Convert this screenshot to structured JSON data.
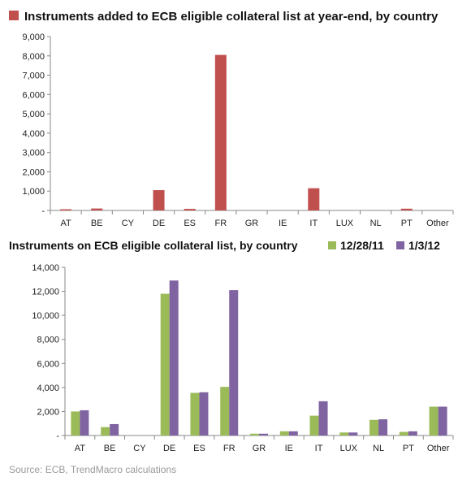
{
  "colors": {
    "chart1_bar": "#c0504d",
    "series_1": "#9bbb59",
    "series_2": "#8064a2",
    "axis": "#888888"
  },
  "source": "Source: ECB, TrendMacro calculations",
  "chart_data": [
    {
      "type": "bar",
      "title": "Instruments added to ECB eligible collateral list at year-end, by country",
      "categories": [
        "AT",
        "BE",
        "CY",
        "DE",
        "ES",
        "FR",
        "GR",
        "IE",
        "IT",
        "LUX",
        "NL",
        "PT",
        "Other"
      ],
      "values": [
        60,
        100,
        0,
        1050,
        80,
        8050,
        0,
        0,
        1150,
        0,
        0,
        90,
        0
      ],
      "ylim": [
        0,
        9000
      ],
      "yticks": [
        0,
        1000,
        2000,
        3000,
        4000,
        5000,
        6000,
        7000,
        8000,
        9000
      ],
      "ytick_labels": [
        "-",
        "1,000",
        "2,000",
        "3,000",
        "4,000",
        "5,000",
        "6,000",
        "7,000",
        "8,000",
        "9,000"
      ],
      "grid": false,
      "xlabel": "",
      "ylabel": ""
    },
    {
      "type": "bar",
      "title": "Instruments on ECB eligible collateral list, by country",
      "categories": [
        "AT",
        "BE",
        "CY",
        "DE",
        "ES",
        "FR",
        "GR",
        "IE",
        "IT",
        "LUX",
        "NL",
        "PT",
        "Other"
      ],
      "series": [
        {
          "name": "12/28/11",
          "values": [
            2000,
            700,
            0,
            11800,
            3550,
            4050,
            150,
            350,
            1650,
            250,
            1300,
            300,
            2400
          ]
        },
        {
          "name": "1/3/12",
          "values": [
            2100,
            950,
            0,
            12900,
            3600,
            12100,
            150,
            350,
            2850,
            250,
            1350,
            350,
            2400
          ]
        }
      ],
      "ylim": [
        0,
        14000
      ],
      "yticks": [
        0,
        2000,
        4000,
        6000,
        8000,
        10000,
        12000,
        14000
      ],
      "ytick_labels": [
        "-",
        "2,000",
        "4,000",
        "6,000",
        "8,000",
        "10,000",
        "12,000",
        "14,000"
      ],
      "legend": "top-right",
      "grid": false,
      "xlabel": "",
      "ylabel": ""
    }
  ]
}
